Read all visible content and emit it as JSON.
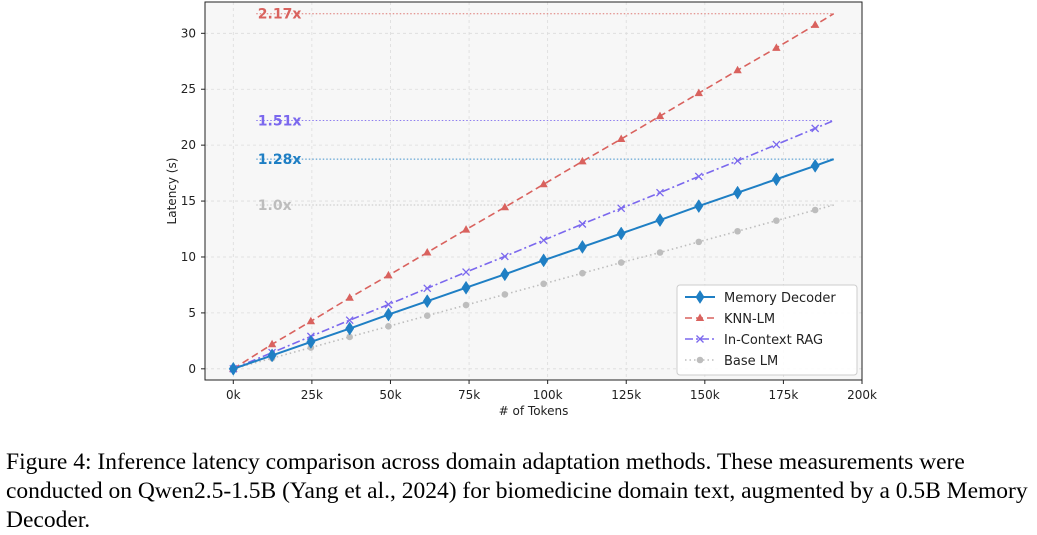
{
  "chart_data": {
    "type": "line",
    "title": "",
    "xlabel": "# of Tokens",
    "ylabel": "Latency (s)",
    "xlim": [
      -9000,
      200000
    ],
    "ylim": [
      -1,
      32.8
    ],
    "xticks": [
      0,
      25000,
      50000,
      75000,
      100000,
      125000,
      150000,
      175000,
      200000
    ],
    "xtick_labels": [
      "0k",
      "25k",
      "50k",
      "75k",
      "100k",
      "125k",
      "150k",
      "175k",
      "200k"
    ],
    "yticks": [
      0,
      5,
      10,
      15,
      20,
      25,
      30
    ],
    "ytick_labels": [
      "0",
      "5",
      "10",
      "15",
      "20",
      "25",
      "30"
    ],
    "grid": true,
    "legend_position": "bottom-right",
    "x": [
      0,
      12340,
      24680,
      37020,
      49360,
      61700,
      74040,
      86380,
      98720,
      111060,
      123400,
      135740,
      148080,
      160420,
      172760,
      185100,
      191000
    ],
    "series": [
      {
        "name": "Memory Decoder",
        "color": "#1f7fc4",
        "line_style": "solid",
        "marker": "diamond",
        "values": [
          0.0,
          1.2,
          2.4,
          3.6,
          4.85,
          6.05,
          7.25,
          8.45,
          9.7,
          10.9,
          12.1,
          13.3,
          14.55,
          15.75,
          16.95,
          18.15,
          18.75
        ]
      },
      {
        "name": "KNN-LM",
        "color": "#d9625e",
        "line_style": "dashed",
        "marker": "triangle",
        "values": [
          0.0,
          2.2,
          4.25,
          6.35,
          8.35,
          10.4,
          12.45,
          14.45,
          16.5,
          18.55,
          20.55,
          22.6,
          24.65,
          26.7,
          28.7,
          30.75,
          31.75
        ]
      },
      {
        "name": "In-Context RAG",
        "color": "#7b68ee",
        "line_style": "dashdot",
        "marker": "x",
        "values": [
          0.0,
          1.45,
          2.9,
          4.35,
          5.75,
          7.2,
          8.65,
          10.05,
          11.5,
          12.95,
          14.35,
          15.75,
          17.2,
          18.6,
          20.05,
          21.5,
          22.2
        ]
      },
      {
        "name": "Base LM",
        "color": "#bdbdbd",
        "line_style": "dotted",
        "marker": "circle",
        "values": [
          0.0,
          0.95,
          1.9,
          2.85,
          3.8,
          4.75,
          5.7,
          6.65,
          7.6,
          8.55,
          9.5,
          10.4,
          11.35,
          12.3,
          13.25,
          14.2,
          14.65
        ]
      }
    ],
    "ratio_annotations": [
      {
        "text": "2.17x",
        "y": 31.75,
        "color": "#d9625e"
      },
      {
        "text": "1.51x",
        "y": 22.2,
        "color": "#7b68ee"
      },
      {
        "text": "1.28x",
        "y": 18.75,
        "color": "#1f7fc4"
      },
      {
        "text": "1.0x",
        "y": 14.65,
        "color": "#bdbdbd"
      }
    ]
  },
  "caption": "Figure 4: Inference latency comparison across domain adaptation methods. These measurements were conducted on Qwen2.5-1.5B (Yang et al., 2024) for biomedicine domain text, augmented by a 0.5B Memory Decoder."
}
